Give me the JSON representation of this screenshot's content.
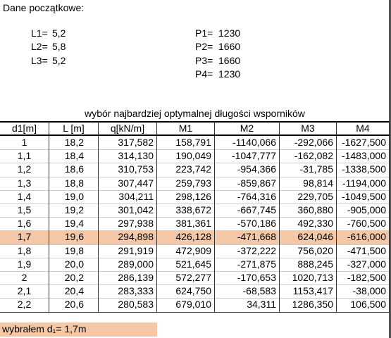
{
  "header": {
    "title": "Dane początkowe:"
  },
  "inputs_left": [
    {
      "label": "L1=",
      "value": "5,2"
    },
    {
      "label": "L2=",
      "value": "5,8"
    },
    {
      "label": "L3=",
      "value": "5,2"
    }
  ],
  "inputs_right": [
    {
      "label": "P1=",
      "value": "1230"
    },
    {
      "label": "P2=",
      "value": "1660"
    },
    {
      "label": "P3=",
      "value": "1660"
    },
    {
      "label": "P4=",
      "value": "1230"
    }
  ],
  "table": {
    "title": "wybór najbardziej optymalnej długości wsporników",
    "columns": [
      "d1[m]",
      "L [m]",
      "q[kN/m]",
      "M1",
      "M2",
      "M3",
      "M4"
    ],
    "rows": [
      [
        "1",
        "18,2",
        "317,582",
        "158,791",
        "-1140,066",
        "-292,066",
        "-1627,500"
      ],
      [
        "1,1",
        "18,4",
        "314,130",
        "190,049",
        "-1047,777",
        "-162,082",
        "-1483,000"
      ],
      [
        "1,2",
        "18,6",
        "310,753",
        "223,742",
        "-954,366",
        "-31,785",
        "-1338,500"
      ],
      [
        "1,3",
        "18,8",
        "307,447",
        "259,793",
        "-859,867",
        "98,814",
        "-1194,000"
      ],
      [
        "1,4",
        "19,0",
        "304,211",
        "298,126",
        "-764,316",
        "229,705",
        "-1049,500"
      ],
      [
        "1,5",
        "19,2",
        "301,042",
        "338,672",
        "-667,745",
        "360,880",
        "-905,000"
      ],
      [
        "1,6",
        "19,4",
        "297,938",
        "381,361",
        "-570,186",
        "492,330",
        "-760,500"
      ],
      [
        "1,7",
        "19,6",
        "294,898",
        "426,128",
        "-471,668",
        "624,046",
        "-616,000"
      ],
      [
        "1,8",
        "19,8",
        "291,919",
        "472,909",
        "-372,222",
        "756,020",
        "-471,500"
      ],
      [
        "1,9",
        "20,0",
        "289,000",
        "521,645",
        "-271,875",
        "888,245",
        "-327,000"
      ],
      [
        "2",
        "20,2",
        "286,139",
        "572,277",
        "-170,653",
        "1020,713",
        "-182,500"
      ],
      [
        "2,1",
        "20,4",
        "283,333",
        "624,750",
        "-68,583",
        "1153,417",
        "-38,000"
      ],
      [
        "2,2",
        "20,6",
        "280,583",
        "679,010",
        "34,311",
        "1286,350",
        "106,500"
      ]
    ]
  },
  "footer": {
    "text": "wybrałem d₁= 1,7m"
  }
}
